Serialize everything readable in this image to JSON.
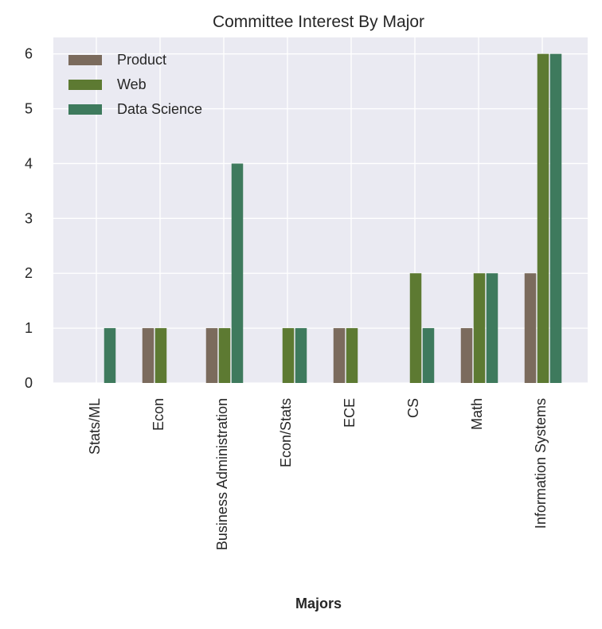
{
  "chart_data": {
    "type": "bar",
    "title": "Committee Interest By Major",
    "xlabel": "Majors",
    "ylabel": "",
    "ylim": [
      0,
      6.3
    ],
    "yticks": [
      0,
      1,
      2,
      3,
      4,
      5,
      6
    ],
    "grid": true,
    "legend_position": "top-left",
    "categories": [
      "Stats/ML",
      "Econ",
      "Business Administration",
      "Econ/Stats",
      "ECE",
      "CS",
      "Math",
      "Information Systems"
    ],
    "series": [
      {
        "name": "Product",
        "color": "#7b6b5d",
        "values": [
          0,
          1,
          1,
          0,
          1,
          0,
          1,
          2
        ]
      },
      {
        "name": "Web",
        "color": "#5d7a32",
        "values": [
          0,
          1,
          1,
          1,
          1,
          2,
          2,
          6
        ]
      },
      {
        "name": "Data Science",
        "color": "#3e7a5d",
        "values": [
          1,
          0,
          4,
          1,
          0,
          1,
          2,
          6
        ]
      }
    ],
    "background": "#eaeaf2",
    "gridline_color": "#ffffff"
  }
}
